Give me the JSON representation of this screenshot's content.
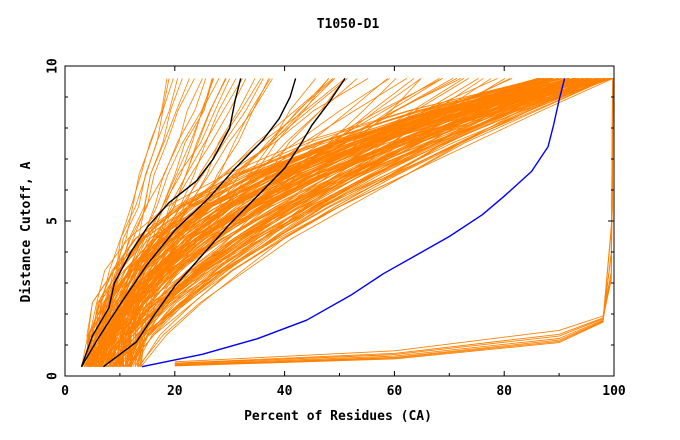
{
  "chart_data": {
    "type": "line",
    "title": "T1050-D1",
    "xlabel": "Percent of Residues (CA)",
    "ylabel": "Distance Cutoff, A",
    "xlim": [
      0,
      100
    ],
    "ylim": [
      0,
      10
    ],
    "xticks": [
      "0",
      "20",
      "40",
      "60",
      "80",
      "100"
    ],
    "yticks": [
      "0",
      "5",
      "10"
    ],
    "grid": false,
    "colors": {
      "models": "#ff8000",
      "highlighted": "#000000",
      "best": "#0000ff"
    },
    "highlighted_series": [
      {
        "x": [
          3,
          5,
          8,
          9,
          12,
          15,
          19,
          24,
          27,
          30,
          31,
          32
        ],
        "y": [
          0.3,
          1.3,
          2.2,
          3.0,
          4.0,
          4.8,
          5.6,
          6.3,
          7.0,
          8.0,
          8.9,
          9.6
        ]
      },
      {
        "x": [
          3,
          6,
          10,
          15,
          20,
          26,
          31,
          36,
          39,
          41,
          42
        ],
        "y": [
          0.3,
          1.2,
          2.3,
          3.6,
          4.7,
          5.7,
          6.7,
          7.6,
          8.3,
          9.0,
          9.6
        ]
      },
      {
        "x": [
          7,
          13,
          16,
          20,
          25,
          30,
          35,
          40,
          43,
          45,
          48,
          51
        ],
        "y": [
          0.3,
          1.1,
          1.9,
          2.9,
          3.9,
          4.9,
          5.8,
          6.7,
          7.5,
          8.1,
          8.8,
          9.6
        ]
      }
    ],
    "best_series": {
      "x": [
        14,
        25,
        35,
        44,
        52,
        58,
        64,
        70,
        76,
        80,
        85,
        88,
        89,
        90,
        91
      ],
      "y": [
        0.3,
        0.7,
        1.2,
        1.8,
        2.6,
        3.3,
        3.9,
        4.5,
        5.2,
        5.8,
        6.6,
        7.4,
        8.1,
        8.9,
        9.6
      ]
    }
  }
}
